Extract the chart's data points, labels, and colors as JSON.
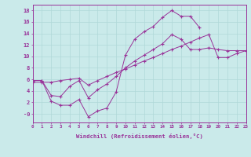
{
  "background_color": "#caeaea",
  "grid_color": "#b0d8d8",
  "line_color": "#993399",
  "xlim": [
    0,
    23
  ],
  "ylim": [
    -1.5,
    19
  ],
  "xticks": [
    0,
    1,
    2,
    3,
    4,
    5,
    6,
    7,
    8,
    9,
    10,
    11,
    12,
    13,
    14,
    15,
    16,
    17,
    18,
    19,
    20,
    21,
    22,
    23
  ],
  "yticks": [
    0,
    2,
    4,
    6,
    8,
    10,
    12,
    14,
    16,
    18
  ],
  "ytick_labels": [
    "-0",
    "2",
    "4",
    "6",
    "8",
    "10",
    "12",
    "14",
    "16",
    "18"
  ],
  "xlabel": "Windchill (Refroidissement éolien,°C)",
  "line1_x": [
    0,
    1,
    2,
    3,
    4,
    5,
    6,
    7,
    8,
    9,
    10,
    11,
    12,
    13,
    14,
    15,
    16,
    17,
    18
  ],
  "line1_y": [
    5.8,
    5.8,
    2.2,
    1.5,
    1.5,
    2.5,
    -0.5,
    0.5,
    1.0,
    3.8,
    10.2,
    13.0,
    14.3,
    15.2,
    16.8,
    18.0,
    17.0,
    17.0,
    15.0
  ],
  "line2_x": [
    0,
    1,
    2,
    3,
    4,
    5,
    6,
    7,
    8,
    9,
    10,
    11,
    12,
    13,
    14,
    15,
    16,
    17,
    18,
    19,
    20,
    21,
    22,
    23
  ],
  "line2_y": [
    5.8,
    5.8,
    3.2,
    3.0,
    4.8,
    5.8,
    2.8,
    4.2,
    5.2,
    6.5,
    8.0,
    9.2,
    10.2,
    11.2,
    12.2,
    13.8,
    13.0,
    11.2,
    11.2,
    11.5,
    11.2,
    11.0,
    11.0,
    11.0
  ],
  "line3_x": [
    0,
    1,
    2,
    3,
    4,
    5,
    6,
    7,
    8,
    9,
    10,
    11,
    12,
    13,
    14,
    15,
    16,
    17,
    18,
    19,
    20,
    21,
    22,
    23
  ],
  "line3_y": [
    5.5,
    5.5,
    5.5,
    5.8,
    6.0,
    6.2,
    5.0,
    5.8,
    6.5,
    7.2,
    7.8,
    8.5,
    9.2,
    9.8,
    10.5,
    11.2,
    11.8,
    12.5,
    13.2,
    13.8,
    9.8,
    9.8,
    10.5,
    11.0
  ]
}
